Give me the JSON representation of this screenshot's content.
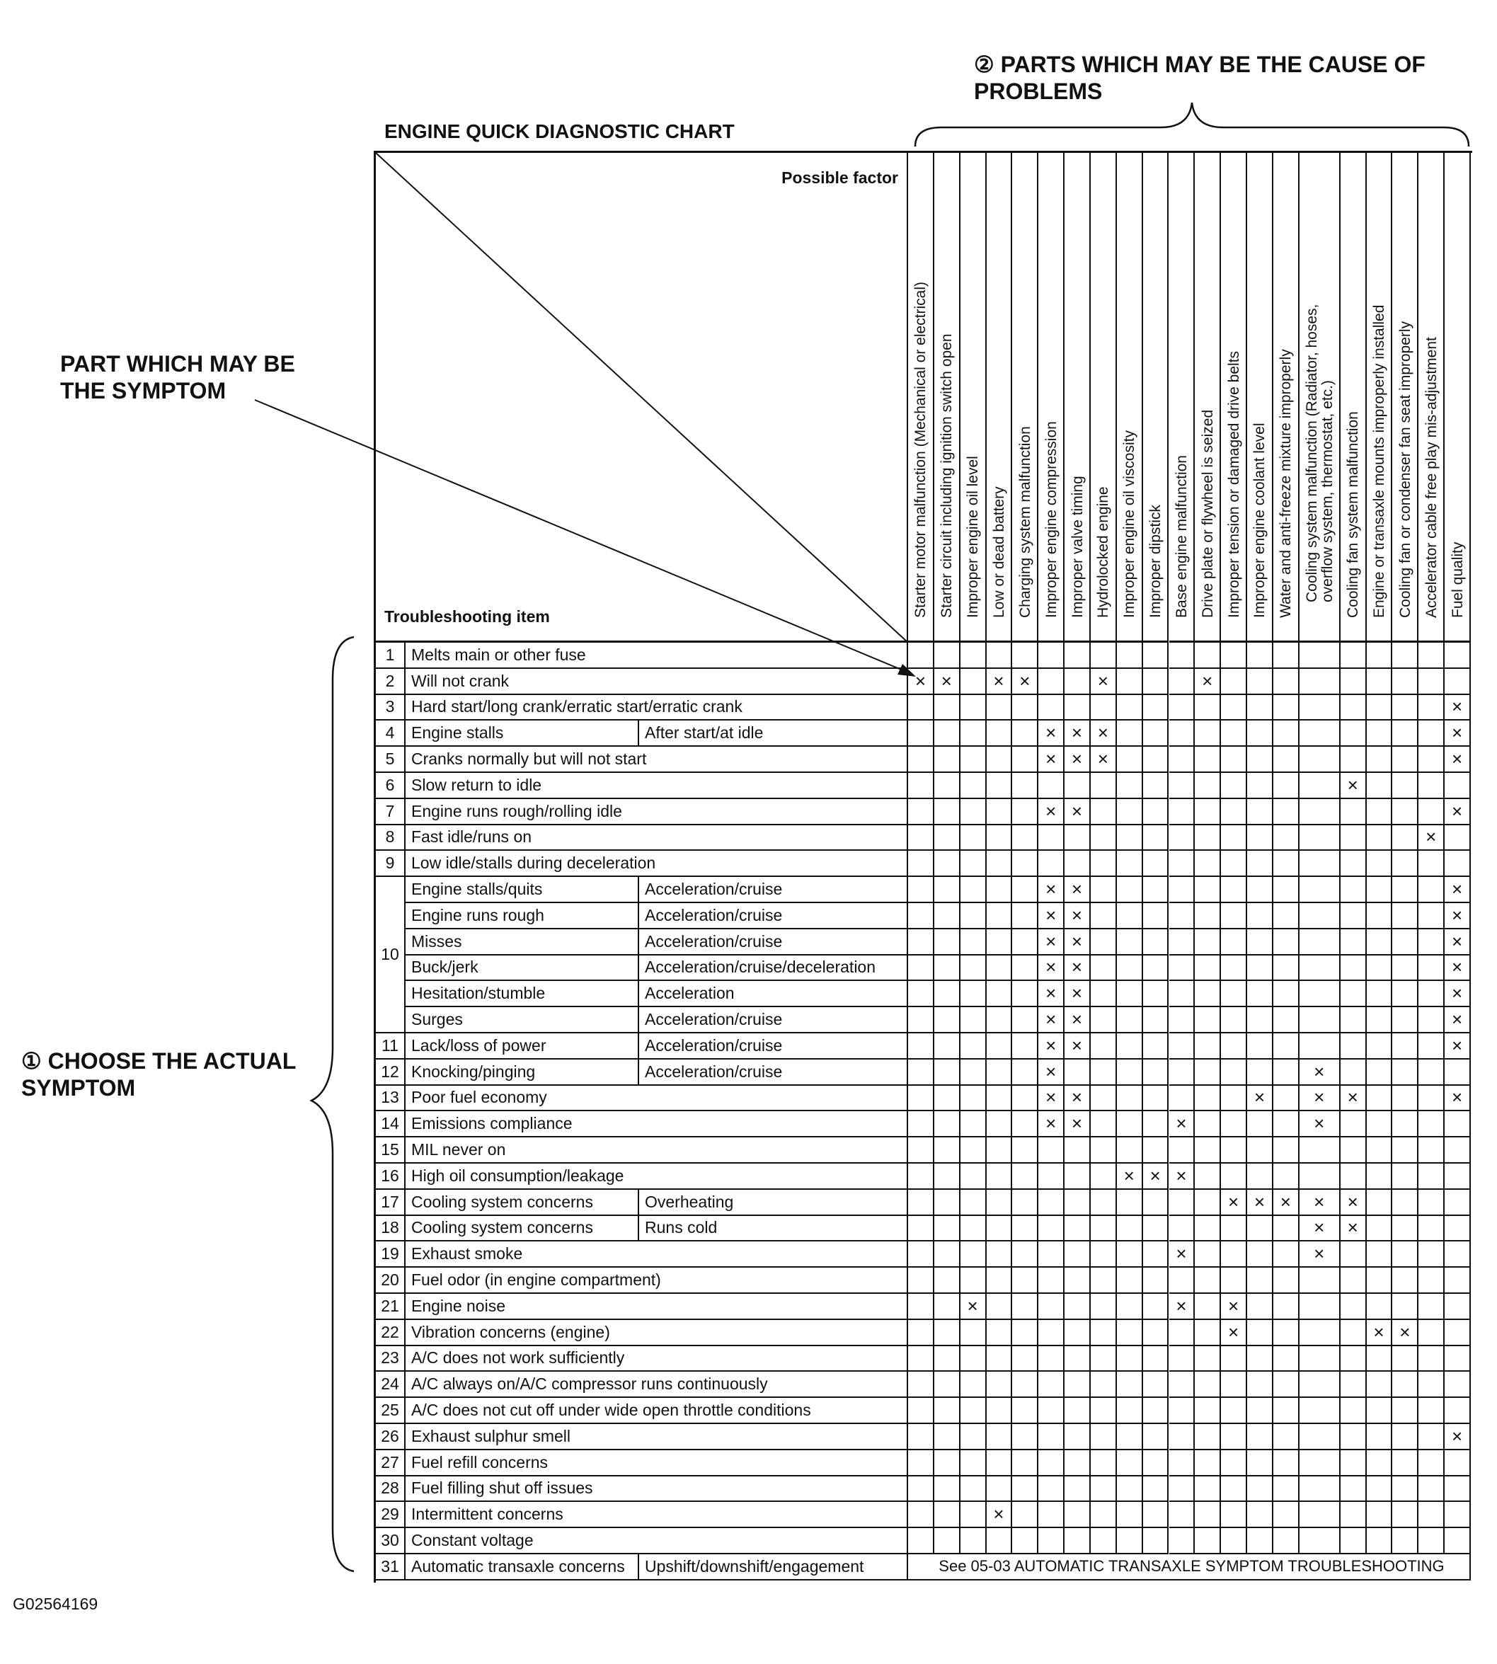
{
  "title": "ENGINE QUICK DIAGNOSTIC CHART",
  "annotations": {
    "parts_cause": "② PARTS WHICH MAY BE THE CAUSE OF PROBLEMS",
    "part_symptom": "PART WHICH MAY BE THE SYMPTOM",
    "choose_symptom": "① CHOOSE THE ACTUAL SYMPTOM",
    "figure_id": "G02564169"
  },
  "header": {
    "possible_factor": "Possible factor",
    "troubleshooting_item": "Troubleshooting item"
  },
  "mark_symbol": "×",
  "factors": [
    "Starter motor malfunction (Mechanical or electrical)",
    "Starter circuit including ignition switch open",
    "Improper engine oil level",
    "Low or dead battery",
    "Charging system malfunction",
    "Improper engine compression",
    "Improper valve timing",
    "Hydrolocked engine",
    "Improper engine oil viscosity",
    "Improper dipstick",
    "Base engine malfunction",
    "Drive plate or flywheel is seized",
    "Improper tension or damaged drive belts",
    "Improper engine coolant level",
    "Water and anti-freeze mixture improperly",
    "Cooling system malfunction (Radiator, hoses, overflow system, thermostat, etc.)",
    "Cooling fan system malfunction",
    "Engine or transaxle mounts improperly installed",
    "Cooling fan or condenser fan seat improperly",
    "Accelerator cable free play mis-adjustment",
    "Fuel quality"
  ],
  "rows": [
    {
      "num": "1",
      "item": "Melts main or other fuse",
      "condition": "",
      "marks": []
    },
    {
      "num": "2",
      "item": "Will not crank",
      "condition": "",
      "marks": [
        1,
        2,
        4,
        5,
        8,
        12
      ]
    },
    {
      "num": "3",
      "item": "Hard start/long crank/erratic start/erratic crank",
      "condition": "",
      "marks": [
        21
      ]
    },
    {
      "num": "4",
      "item": "Engine stalls",
      "condition": "After start/at idle",
      "marks": [
        6,
        7,
        8,
        21
      ]
    },
    {
      "num": "5",
      "item": "Cranks normally but will not start",
      "condition": "",
      "marks": [
        6,
        7,
        8,
        21
      ]
    },
    {
      "num": "6",
      "item": "Slow return to idle",
      "condition": "",
      "marks": [
        17
      ]
    },
    {
      "num": "7",
      "item": "Engine runs rough/rolling idle",
      "condition": "",
      "marks": [
        6,
        7,
        21
      ]
    },
    {
      "num": "8",
      "item": "Fast idle/runs on",
      "condition": "",
      "marks": [
        20
      ]
    },
    {
      "num": "9",
      "item": "Low idle/stalls during deceleration",
      "condition": "",
      "marks": []
    },
    {
      "num": "10",
      "item": "Engine stalls/quits",
      "condition": "Acceleration/cruise",
      "marks": [
        6,
        7,
        21
      ],
      "span": 6
    },
    {
      "num": "",
      "item": "Engine runs rough",
      "condition": "Acceleration/cruise",
      "marks": [
        6,
        7,
        21
      ]
    },
    {
      "num": "",
      "item": "Misses",
      "condition": "Acceleration/cruise",
      "marks": [
        6,
        7,
        21
      ]
    },
    {
      "num": "",
      "item": "Buck/jerk",
      "condition": "Acceleration/cruise/deceleration",
      "marks": [
        6,
        7,
        21
      ]
    },
    {
      "num": "",
      "item": "Hesitation/stumble",
      "condition": "Acceleration",
      "marks": [
        6,
        7,
        21
      ]
    },
    {
      "num": "",
      "item": "Surges",
      "condition": "Acceleration/cruise",
      "marks": [
        6,
        7,
        21
      ]
    },
    {
      "num": "11",
      "item": "Lack/loss of power",
      "condition": "Acceleration/cruise",
      "marks": [
        6,
        7,
        21
      ]
    },
    {
      "num": "12",
      "item": "Knocking/pinging",
      "condition": "Acceleration/cruise",
      "marks": [
        6,
        16
      ]
    },
    {
      "num": "13",
      "item": "Poor fuel economy",
      "condition": "",
      "marks": [
        6,
        7,
        14,
        16,
        17,
        21
      ]
    },
    {
      "num": "14",
      "item": "Emissions compliance",
      "condition": "",
      "marks": [
        6,
        7,
        11,
        16
      ]
    },
    {
      "num": "15",
      "item": "MIL never on",
      "condition": "",
      "marks": []
    },
    {
      "num": "16",
      "item": "High oil consumption/leakage",
      "condition": "",
      "marks": [
        9,
        10,
        11
      ]
    },
    {
      "num": "17",
      "item": "Cooling system concerns",
      "condition": "Overheating",
      "marks": [
        13,
        14,
        15,
        16,
        17
      ]
    },
    {
      "num": "18",
      "item": "Cooling system concerns",
      "condition": "Runs cold",
      "marks": [
        16,
        17
      ]
    },
    {
      "num": "19",
      "item": "Exhaust smoke",
      "condition": "",
      "marks": [
        11,
        16
      ]
    },
    {
      "num": "20",
      "item": "Fuel odor (in engine compartment)",
      "condition": "",
      "marks": []
    },
    {
      "num": "21",
      "item": "Engine noise",
      "condition": "",
      "marks": [
        3,
        11,
        13
      ]
    },
    {
      "num": "22",
      "item": "Vibration concerns (engine)",
      "condition": "",
      "marks": [
        13,
        18,
        19
      ]
    },
    {
      "num": "23",
      "item": "A/C does not work sufficiently",
      "condition": "",
      "marks": []
    },
    {
      "num": "24",
      "item": "A/C always on/A/C compressor runs continuously",
      "condition": "",
      "marks": []
    },
    {
      "num": "25",
      "item": "A/C does not cut off under wide open throttle conditions",
      "condition": "",
      "marks": []
    },
    {
      "num": "26",
      "item": "Exhaust sulphur smell",
      "condition": "",
      "marks": [
        21
      ]
    },
    {
      "num": "27",
      "item": "Fuel refill concerns",
      "condition": "",
      "marks": []
    },
    {
      "num": "28",
      "item": "Fuel filling shut off issues",
      "condition": "",
      "marks": []
    },
    {
      "num": "29",
      "item": "Intermittent concerns",
      "condition": "",
      "marks": [
        4
      ]
    },
    {
      "num": "30",
      "item": "Constant voltage",
      "condition": "",
      "marks": []
    },
    {
      "num": "31",
      "item": "Automatic transaxle concerns",
      "condition": "Upshift/downshift/engagement",
      "marks": [],
      "note": "See 05-03 AUTOMATIC TRANSAXLE SYMPTOM TROUBLESHOOTING"
    }
  ]
}
